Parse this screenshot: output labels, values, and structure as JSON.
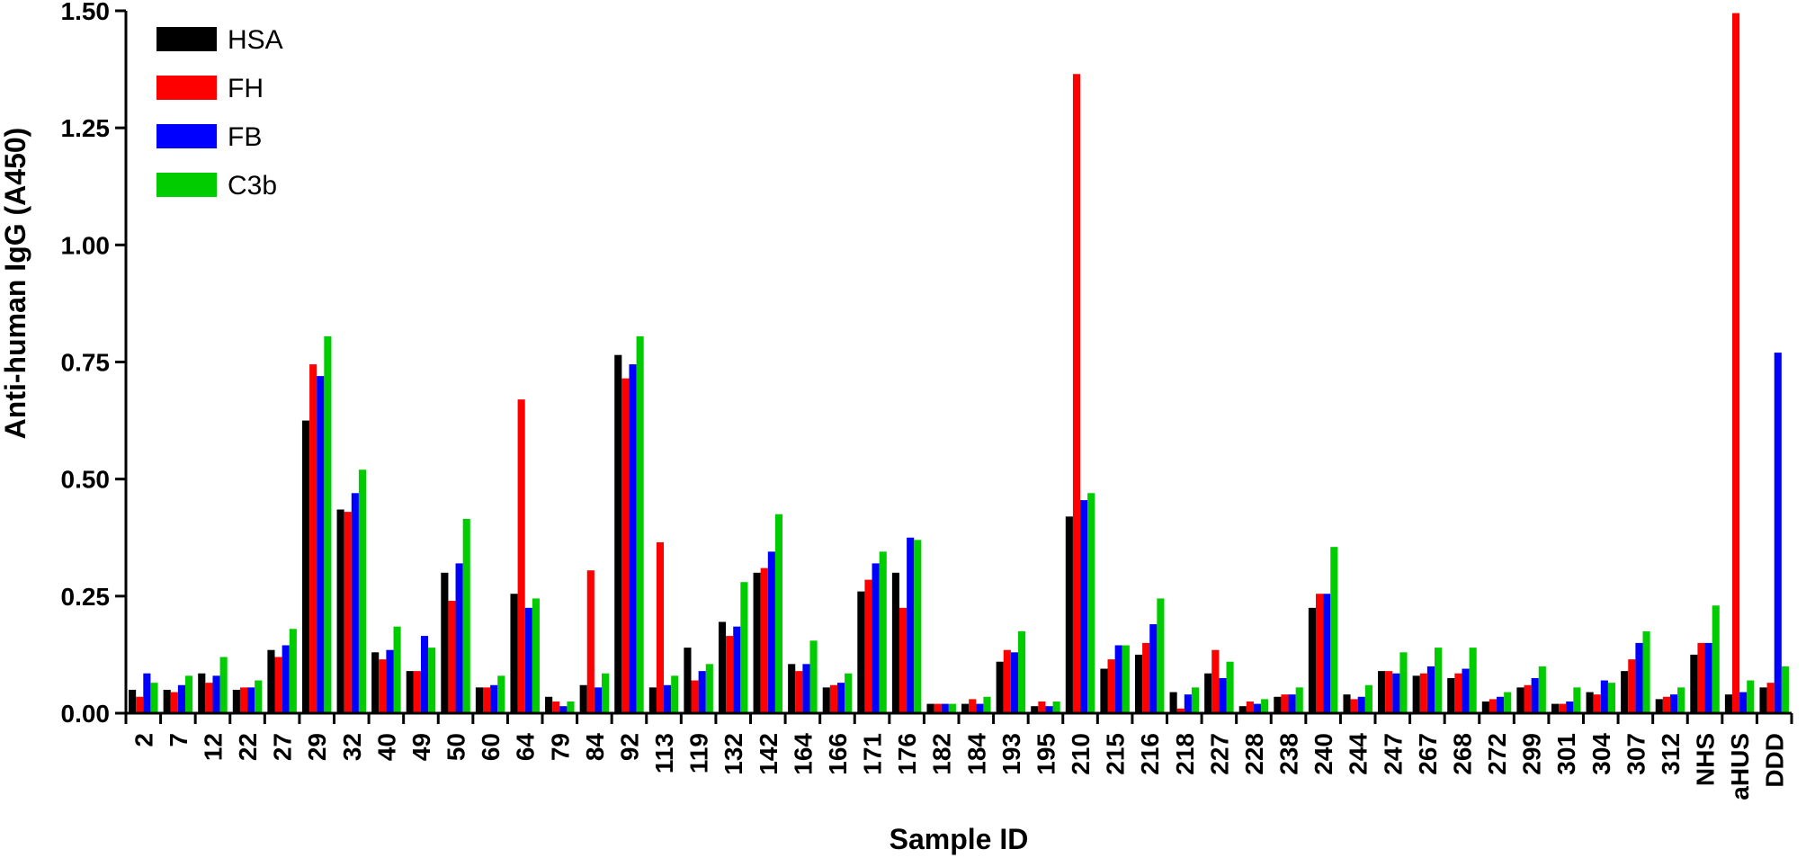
{
  "chart_data": {
    "type": "bar",
    "xlabel": "Sample ID",
    "ylabel": "Anti-human IgG (A450)",
    "ylim": [
      0,
      1.5
    ],
    "yticks": [
      "0.00",
      "0.25",
      "0.50",
      "0.75",
      "1.00",
      "1.25",
      "1.50"
    ],
    "legend_position": "top-left",
    "categories": [
      "2",
      "7",
      "12",
      "22",
      "27",
      "29",
      "32",
      "40",
      "49",
      "50",
      "60",
      "64",
      "79",
      "84",
      "92",
      "113",
      "119",
      "132",
      "142",
      "164",
      "166",
      "171",
      "176",
      "182",
      "184",
      "193",
      "195",
      "210",
      "215",
      "216",
      "218",
      "227",
      "228",
      "238",
      "240",
      "244",
      "247",
      "267",
      "268",
      "272",
      "299",
      "301",
      "304",
      "307",
      "312",
      "NHS",
      "aHUS",
      "DDD"
    ],
    "series": [
      {
        "name": "HSA",
        "color": "#000000",
        "values": [
          0.05,
          0.05,
          0.085,
          0.05,
          0.135,
          0.625,
          0.435,
          0.13,
          0.09,
          0.3,
          0.055,
          0.255,
          0.035,
          0.06,
          0.765,
          0.055,
          0.14,
          0.195,
          0.3,
          0.105,
          0.055,
          0.26,
          0.3,
          0.02,
          0.02,
          0.11,
          0.015,
          0.42,
          0.095,
          0.125,
          0.045,
          0.085,
          0.015,
          0.035,
          0.225,
          0.04,
          0.09,
          0.08,
          0.075,
          0.025,
          0.055,
          0.02,
          0.045,
          0.09,
          0.03,
          0.125,
          0.04,
          0.055
        ]
      },
      {
        "name": "FH",
        "color": "#ff0000",
        "values": [
          0.035,
          0.045,
          0.065,
          0.055,
          0.12,
          0.745,
          0.43,
          0.115,
          0.09,
          0.24,
          0.055,
          0.67,
          0.025,
          0.305,
          0.715,
          0.365,
          0.07,
          0.165,
          0.31,
          0.09,
          0.06,
          0.285,
          0.225,
          0.02,
          0.03,
          0.135,
          0.025,
          1.365,
          0.115,
          0.15,
          0.01,
          0.135,
          0.025,
          0.04,
          0.255,
          0.03,
          0.09,
          0.085,
          0.085,
          0.03,
          0.06,
          0.02,
          0.04,
          0.115,
          0.035,
          0.15,
          1.495,
          0.065
        ]
      },
      {
        "name": "FB",
        "color": "#0000ff",
        "values": [
          0.085,
          0.06,
          0.08,
          0.055,
          0.145,
          0.72,
          0.47,
          0.135,
          0.165,
          0.32,
          0.06,
          0.225,
          0.015,
          0.055,
          0.745,
          0.06,
          0.09,
          0.185,
          0.345,
          0.105,
          0.065,
          0.32,
          0.375,
          0.02,
          0.02,
          0.13,
          0.015,
          0.455,
          0.145,
          0.19,
          0.04,
          0.075,
          0.02,
          0.04,
          0.255,
          0.035,
          0.085,
          0.1,
          0.095,
          0.035,
          0.075,
          0.025,
          0.07,
          0.15,
          0.04,
          0.15,
          0.045,
          0.77
        ]
      },
      {
        "name": "C3b",
        "color": "#00cc00",
        "values": [
          0.065,
          0.08,
          0.12,
          0.07,
          0.18,
          0.805,
          0.52,
          0.185,
          0.14,
          0.415,
          0.08,
          0.245,
          0.025,
          0.085,
          0.805,
          0.08,
          0.105,
          0.28,
          0.425,
          0.155,
          0.085,
          0.345,
          0.37,
          0.02,
          0.035,
          0.175,
          0.025,
          0.47,
          0.145,
          0.245,
          0.055,
          0.11,
          0.03,
          0.055,
          0.355,
          0.06,
          0.13,
          0.14,
          0.14,
          0.045,
          0.1,
          0.055,
          0.065,
          0.175,
          0.055,
          0.23,
          0.07,
          0.1
        ]
      }
    ]
  }
}
